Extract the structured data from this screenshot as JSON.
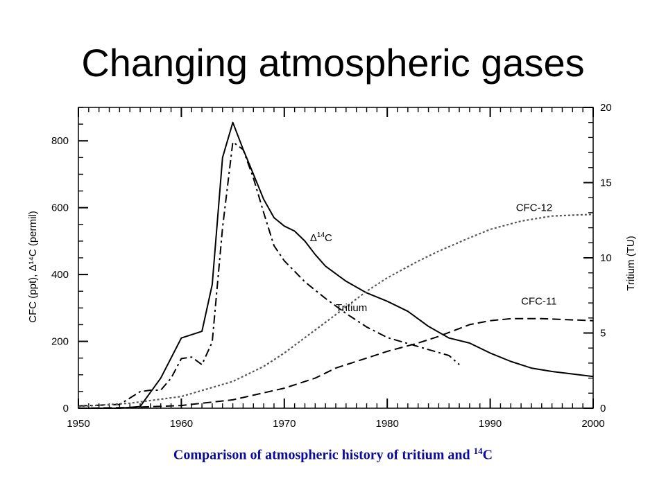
{
  "slide": {
    "title": "Changing atmospheric gases",
    "caption_text": "Comparison of atmospheric history of tritium and ",
    "caption_sup": "14",
    "caption_tail": "C",
    "caption_color": "#0b0b99"
  },
  "chart_data": {
    "type": "line",
    "title": "",
    "xlabel": "",
    "ylabel": "CFC  (ppt), Δ¹⁴C (permil)",
    "y2label": "Tritium (TU)",
    "xlim": [
      1950,
      2000
    ],
    "ylim": [
      0,
      900
    ],
    "y2lim": [
      0,
      20
    ],
    "xticks": [
      "1950",
      "1960",
      "1970",
      "1980",
      "1990",
      "2000"
    ],
    "yticks": [
      "0",
      "200",
      "400",
      "600",
      "800"
    ],
    "y2ticks": [
      "0",
      "5",
      "10",
      "15",
      "20"
    ],
    "grid": false,
    "legend": "none",
    "annotations": [
      {
        "text": "CFC-12",
        "series": "CFC-12"
      },
      {
        "text": "CFC-11",
        "series": "CFC-11"
      },
      {
        "text": "Tritium",
        "series": "Tritium"
      },
      {
        "text": "Δ",
        "sup": "14",
        "tail": "C",
        "series": "Δ14C"
      }
    ],
    "series": [
      {
        "name": "Δ14C",
        "axis": "left",
        "style": "solid",
        "x": [
          1950,
          1954,
          1956,
          1958,
          1960,
          1962,
          1963,
          1964,
          1965,
          1966,
          1967,
          1968,
          1969,
          1970,
          1971,
          1972,
          1973,
          1974,
          1976,
          1978,
          1980,
          1982,
          1984,
          1986,
          1988,
          1990,
          1992,
          1994,
          1996,
          2000
        ],
        "y": [
          0,
          0,
          5,
          90,
          210,
          230,
          370,
          750,
          855,
          775,
          700,
          625,
          570,
          545,
          530,
          500,
          460,
          425,
          380,
          345,
          320,
          290,
          245,
          210,
          195,
          165,
          140,
          120,
          110,
          95
        ]
      },
      {
        "name": "Tritium",
        "axis": "right",
        "style": "dashdot",
        "x": [
          1950,
          1954,
          1956,
          1957,
          1958,
          1959,
          1960,
          1961,
          1962,
          1963,
          1964,
          1965,
          1966,
          1967,
          1968,
          1969,
          1970,
          1972,
          1974,
          1976,
          1978,
          1980,
          1982,
          1984,
          1986,
          1987
        ],
        "y": [
          0.15,
          0.25,
          1.1,
          1.2,
          1.2,
          2.0,
          3.3,
          3.4,
          2.9,
          4.4,
          12.0,
          17.7,
          17.2,
          15.3,
          13.0,
          10.8,
          9.8,
          8.4,
          7.3,
          6.3,
          5.4,
          4.7,
          4.3,
          3.9,
          3.5,
          2.9
        ]
      },
      {
        "name": "CFC-12",
        "axis": "left",
        "style": "dotted",
        "x": [
          1950,
          1955,
          1960,
          1965,
          1968,
          1970,
          1975,
          1978,
          1980,
          1983,
          1985,
          1988,
          1990,
          1993,
          1996,
          2000
        ],
        "y": [
          5,
          15,
          35,
          80,
          125,
          165,
          280,
          350,
          390,
          440,
          470,
          510,
          535,
          560,
          575,
          580
        ]
      },
      {
        "name": "CFC-11",
        "axis": "left",
        "style": "dashed",
        "x": [
          1950,
          1955,
          1960,
          1965,
          1970,
          1973,
          1975,
          1978,
          1980,
          1983,
          1985,
          1988,
          1990,
          1992,
          1995,
          2000
        ],
        "y": [
          0,
          2,
          8,
          25,
          60,
          90,
          120,
          150,
          170,
          195,
          215,
          250,
          262,
          268,
          268,
          262
        ]
      }
    ]
  }
}
